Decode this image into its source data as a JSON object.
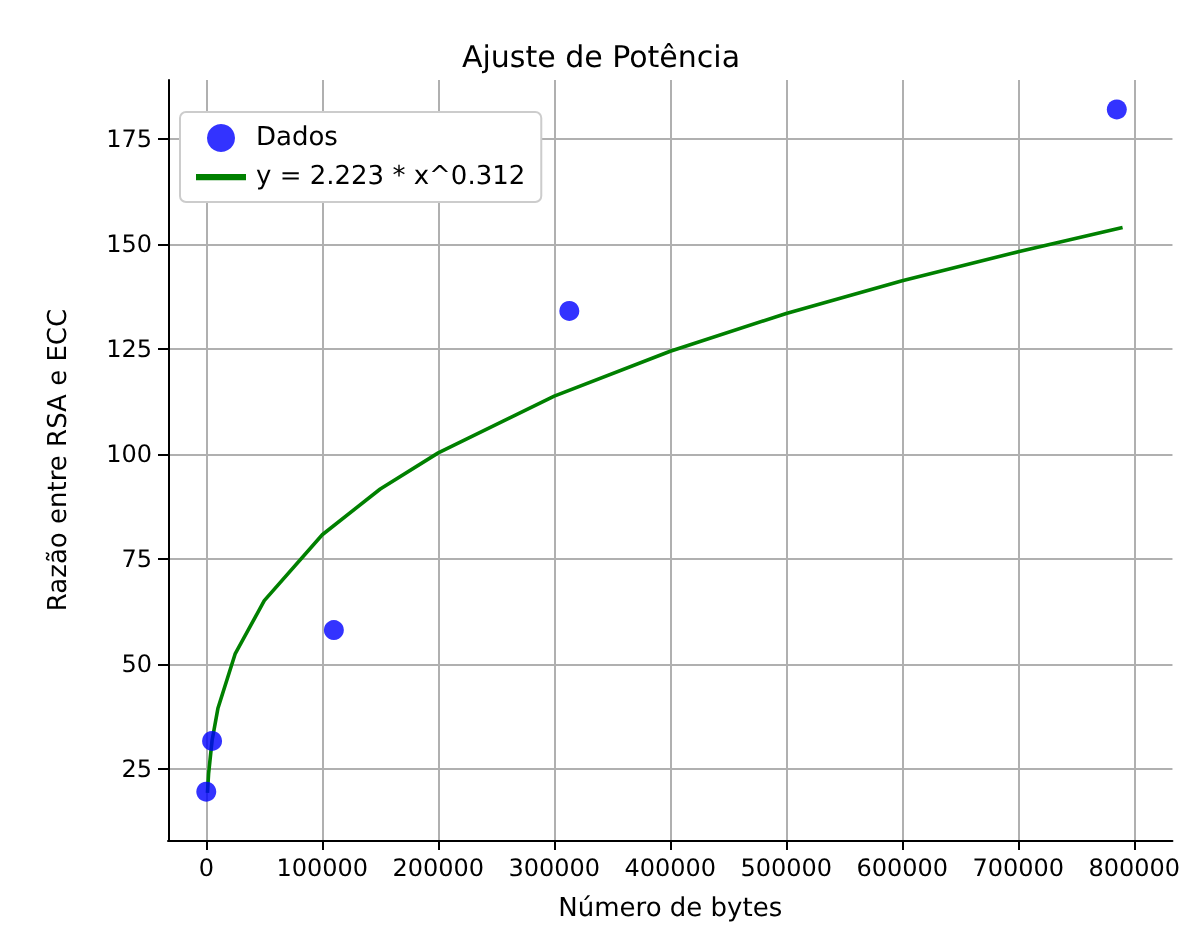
{
  "chart_data": {
    "type": "scatter",
    "title": "Ajuste de Potência",
    "xlabel": "Número de bytes",
    "ylabel": "Razão entre RSA e ECC",
    "xlim": [
      -33000,
      833000
    ],
    "xticks": [
      0,
      100000,
      200000,
      300000,
      400000,
      500000,
      600000,
      700000,
      800000
    ],
    "ylim": [
      8,
      189
    ],
    "yticks": [
      25,
      50,
      75,
      100,
      125,
      150,
      175
    ],
    "grid": true,
    "legend": "top left",
    "series": [
      {
        "name": "Dados",
        "marker": "circle",
        "color": "#0000ff",
        "x": [
          0,
          5000,
          110000,
          313000,
          785000
        ],
        "values": [
          19.5,
          31.6,
          58,
          134,
          182
        ]
      },
      {
        "name": "y = 2.223 * x^0.312",
        "type": "line",
        "marker": "none",
        "color": "#008000",
        "x": [
          1000,
          2000,
          5000,
          10000,
          25000,
          50000,
          100000,
          150000,
          200000,
          300000,
          400000,
          500000,
          600000,
          700000,
          790000
        ],
        "values": [
          19.2,
          23.8,
          31.7,
          39.3,
          52.4,
          65.0,
          80.7,
          91.6,
          100.2,
          113.7,
          124.4,
          133.4,
          141.2,
          148.1,
          153.9
        ]
      }
    ]
  }
}
